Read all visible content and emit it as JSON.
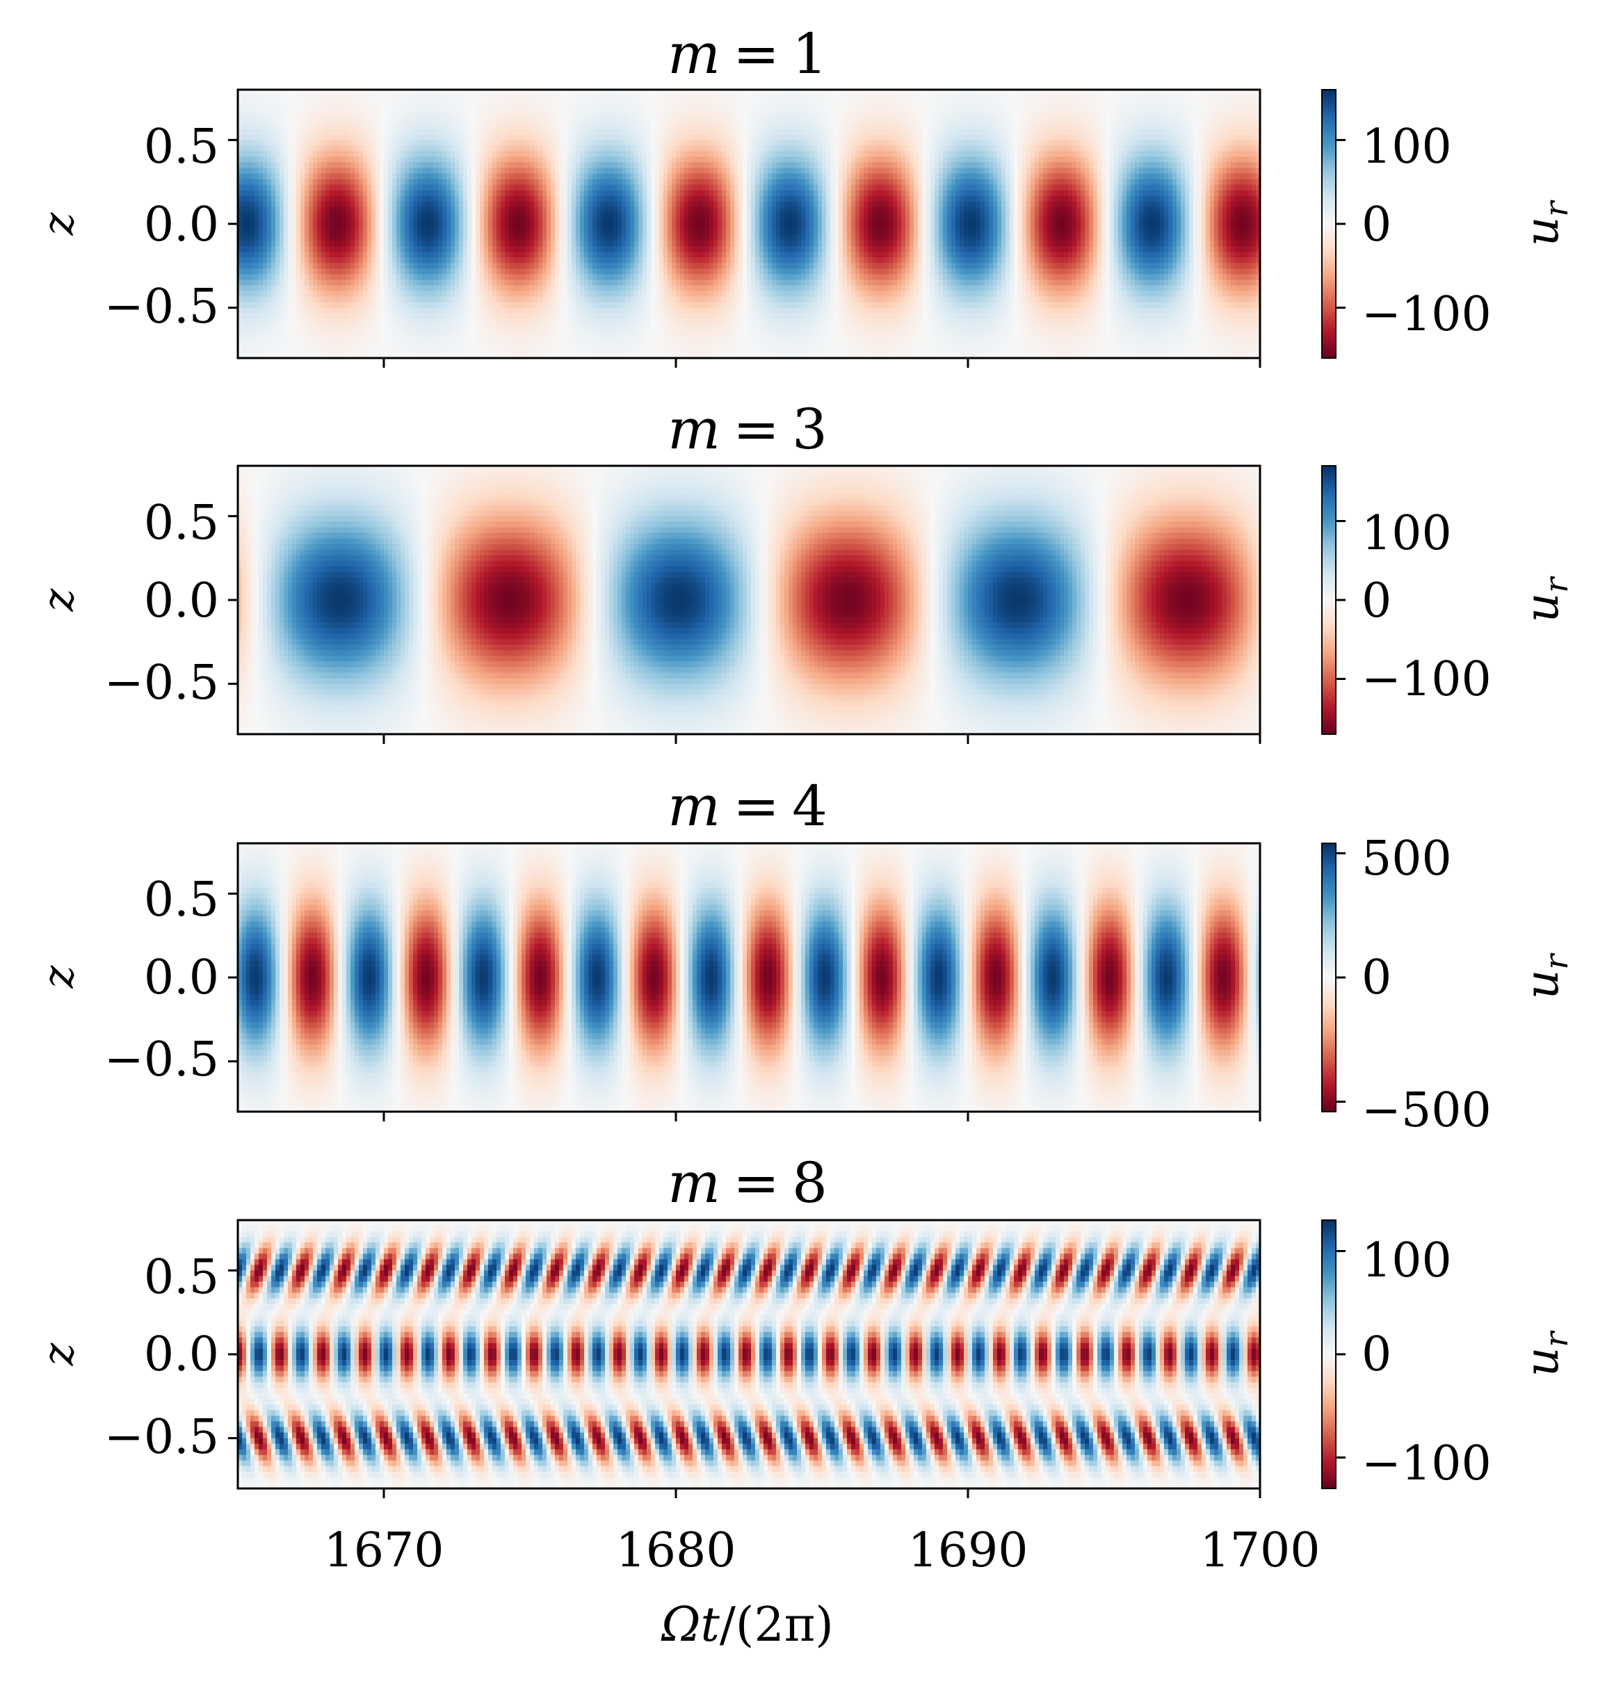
{
  "chart_data": [
    {
      "type": "heatmap",
      "title_prefix": "m",
      "title_value": "1",
      "ylabel": "z",
      "xlim": [
        1665,
        1700
      ],
      "ylim": [
        -0.8,
        0.8
      ],
      "yticks": [
        "0.5",
        "0.0",
        "−0.5"
      ],
      "ytick_values": [
        0.5,
        0.0,
        -0.5
      ],
      "xticks_values": [
        1670,
        1680,
        1690,
        1700
      ],
      "colorbar": {
        "label_main": "u",
        "label_sub": "r",
        "vmin": -160,
        "vmax": 160,
        "cmap": "RdBu",
        "ticks": [
          "100",
          "0",
          "−100"
        ],
        "tick_values": [
          100,
          0,
          -100
        ]
      },
      "pattern": {
        "kind": "oscillation",
        "period": 6.2,
        "phase_first_blue_max": 1665.3,
        "z_width": 0.42,
        "amplitude_peak": 155
      }
    },
    {
      "type": "heatmap",
      "title_prefix": "m",
      "title_value": "3",
      "ylabel": "z",
      "xlim": [
        1665,
        1700
      ],
      "ylim": [
        -0.8,
        0.8
      ],
      "yticks": [
        "0.5",
        "0.0",
        "−0.5"
      ],
      "ytick_values": [
        0.5,
        0.0,
        -0.5
      ],
      "xticks_values": [
        1670,
        1680,
        1690,
        1700
      ],
      "colorbar": {
        "label_main": "u",
        "label_sub": "r",
        "vmin": -170,
        "vmax": 170,
        "cmap": "RdBu",
        "ticks": [
          "100",
          "0",
          "−100"
        ],
        "tick_values": [
          100,
          0,
          -100
        ]
      },
      "pattern": {
        "kind": "oscillation",
        "period": 11.6,
        "phase_first_blue_max": 1668.5,
        "z_width": 0.5,
        "amplitude_peak": 165
      }
    },
    {
      "type": "heatmap",
      "title_prefix": "m",
      "title_value": "4",
      "ylabel": "z",
      "xlim": [
        1665,
        1700
      ],
      "ylim": [
        -0.8,
        0.8
      ],
      "yticks": [
        "0.5",
        "0.0",
        "−0.5"
      ],
      "ytick_values": [
        0.5,
        0.0,
        -0.5
      ],
      "xticks_values": [
        1670,
        1680,
        1690,
        1700
      ],
      "colorbar": {
        "label_main": "u",
        "label_sub": "r",
        "vmin": -540,
        "vmax": 540,
        "cmap": "RdBu",
        "ticks": [
          "500",
          "0",
          "−500"
        ],
        "tick_values": [
          500,
          0,
          -500
        ]
      },
      "pattern": {
        "kind": "oscillation",
        "period": 3.9,
        "phase_first_blue_max": 1665.6,
        "z_width": 0.45,
        "amplitude_peak": 520
      }
    },
    {
      "type": "heatmap",
      "title_prefix": "m",
      "title_value": "8",
      "ylabel": "z",
      "xlabel_main": "Ωt",
      "xlabel_rest": "/(2π)",
      "xlim": [
        1665,
        1700
      ],
      "ylim": [
        -0.8,
        0.8
      ],
      "yticks": [
        "0.5",
        "0.0",
        "−0.5"
      ],
      "ytick_values": [
        0.5,
        0.0,
        -0.5
      ],
      "xticks": [
        "1670",
        "1680",
        "1690",
        "1700"
      ],
      "xticks_values": [
        1670,
        1680,
        1690,
        1700
      ],
      "colorbar": {
        "label_main": "u",
        "label_sub": "r",
        "vmin": -130,
        "vmax": 130,
        "cmap": "RdBu",
        "ticks": [
          "100",
          "0",
          "−100"
        ],
        "tick_values": [
          100,
          0,
          -100
        ]
      },
      "pattern": {
        "kind": "three-band",
        "period": 1.45,
        "band_centers": [
          0.5,
          0.0,
          -0.5
        ],
        "amplitude_peak": 125
      }
    }
  ]
}
